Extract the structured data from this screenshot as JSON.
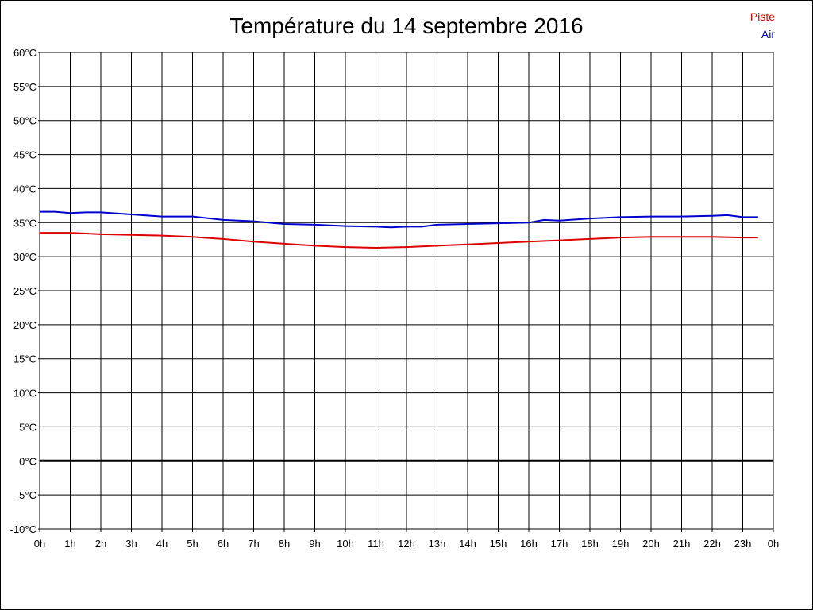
{
  "chart_data": {
    "type": "line",
    "title": "Température du 14 septembre 2016",
    "xlabel": "",
    "ylabel": "",
    "y_tick_labels": [
      "60°C",
      "55°C",
      "50°C",
      "45°C",
      "40°C",
      "35°C",
      "30°C",
      "25°C",
      "20°C",
      "15°C",
      "10°C",
      "5°C",
      "0°C",
      "-5°C",
      "-10°C"
    ],
    "x_tick_labels": [
      "0h",
      "1h",
      "2h",
      "3h",
      "4h",
      "5h",
      "6h",
      "7h",
      "8h",
      "9h",
      "10h",
      "11h",
      "12h",
      "13h",
      "14h",
      "15h",
      "16h",
      "17h",
      "18h",
      "19h",
      "20h",
      "21h",
      "22h",
      "23h",
      "0h"
    ],
    "ylim": [
      -10,
      60
    ],
    "xlim": [
      0,
      24
    ],
    "grid": true,
    "legend_placement": "top-right",
    "series": [
      {
        "name": "Piste",
        "color": "#dd0000",
        "x": [
          0,
          1,
          2,
          3,
          4,
          5,
          6,
          7,
          8,
          9,
          10,
          11,
          12,
          13,
          14,
          15,
          16,
          17,
          18,
          19,
          20,
          21,
          22,
          23,
          23.5
        ],
        "values": [
          33.5,
          33.5,
          33.3,
          33.2,
          33.1,
          32.9,
          32.6,
          32.2,
          31.9,
          31.6,
          31.4,
          31.3,
          31.4,
          31.6,
          31.8,
          32.0,
          32.2,
          32.4,
          32.6,
          32.8,
          32.9,
          32.9,
          32.9,
          32.8,
          32.8
        ]
      },
      {
        "name": "Air",
        "color": "#0000cc",
        "x": [
          0,
          0.5,
          1,
          1.5,
          2,
          3,
          4,
          5,
          6,
          7,
          8,
          9,
          10,
          11,
          11.5,
          12,
          12.5,
          13,
          14,
          15,
          16,
          16.5,
          17,
          18,
          19,
          20,
          21,
          22,
          22.5,
          23,
          23.5
        ],
        "values": [
          36.6,
          36.6,
          36.4,
          36.5,
          36.5,
          36.2,
          35.9,
          35.9,
          35.4,
          35.2,
          34.8,
          34.7,
          34.5,
          34.4,
          34.3,
          34.4,
          34.4,
          34.7,
          34.8,
          34.9,
          35.0,
          35.4,
          35.3,
          35.6,
          35.8,
          35.9,
          35.9,
          36.0,
          36.1,
          35.8,
          35.8
        ]
      }
    ]
  }
}
